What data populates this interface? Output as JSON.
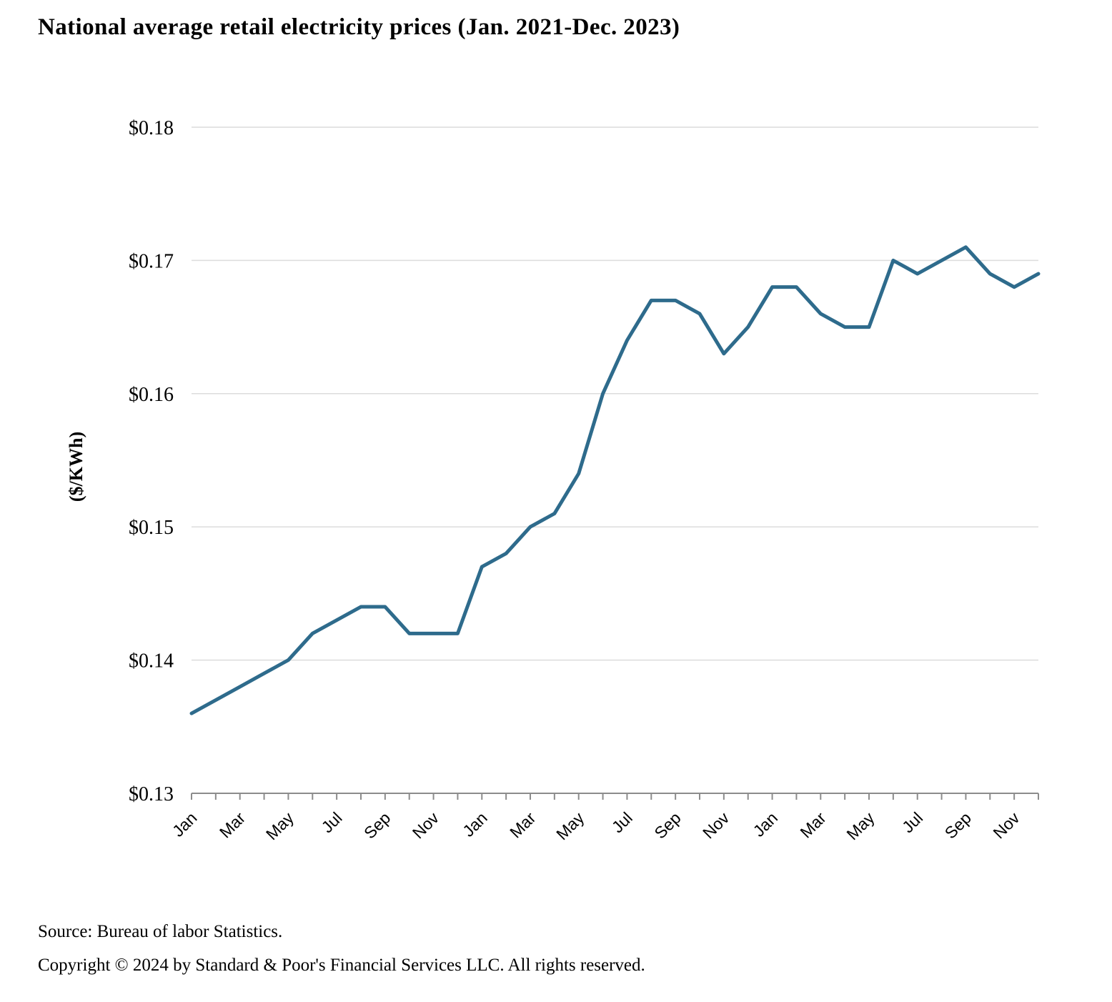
{
  "header": {
    "title": "National average retail electricity prices (Jan. 2021-Dec. 2023)"
  },
  "footer": {
    "source": "Source: Bureau of labor Statistics.",
    "copyright": "Copyright © 2024 by Standard & Poor's Financial Services LLC. All rights reserved."
  },
  "chart_data": {
    "type": "line",
    "title": "National average retail electricity prices (Jan. 2021-Dec. 2023)",
    "xlabel": "",
    "ylabel": "($/KWh)",
    "categories": [
      "Jan 2021",
      "Feb 2021",
      "Mar 2021",
      "Apr 2021",
      "May 2021",
      "Jun 2021",
      "Jul 2021",
      "Aug 2021",
      "Sep 2021",
      "Oct 2021",
      "Nov 2021",
      "Dec 2021",
      "Jan 2022",
      "Feb 2022",
      "Mar 2022",
      "Apr 2022",
      "May 2022",
      "Jun 2022",
      "Jul 2022",
      "Aug 2022",
      "Sep 2022",
      "Oct 2022",
      "Nov 2022",
      "Dec 2022",
      "Jan 2023",
      "Feb 2023",
      "Mar 2023",
      "Apr 2023",
      "May 2023",
      "Jun 2023",
      "Jul 2023",
      "Aug 2023",
      "Sep 2023",
      "Oct 2023",
      "Nov 2023",
      "Dec 2023"
    ],
    "values": [
      0.136,
      0.137,
      0.138,
      0.139,
      0.14,
      0.142,
      0.143,
      0.144,
      0.144,
      0.142,
      0.142,
      0.142,
      0.147,
      0.148,
      0.15,
      0.151,
      0.154,
      0.16,
      0.164,
      0.167,
      0.167,
      0.166,
      0.163,
      0.165,
      0.168,
      0.168,
      0.166,
      0.165,
      0.165,
      0.17,
      0.169,
      0.17,
      0.171,
      0.169,
      0.168,
      0.169
    ],
    "ylim": [
      0.13,
      0.18
    ],
    "y_ticks": [
      0.13,
      0.14,
      0.15,
      0.16,
      0.17,
      0.18
    ],
    "y_tick_labels": [
      "$0.13",
      "$0.14",
      "$0.15",
      "$0.16",
      "$0.17",
      "$0.18"
    ],
    "x_tick_label_every": 2,
    "x_tick_labels_shown": [
      "Jan",
      "Mar",
      "May",
      "Jul",
      "Sep",
      "Nov",
      "Jan",
      "Mar",
      "May",
      "Jul",
      "Sep",
      "Nov",
      "Jan",
      "Mar",
      "May",
      "Jul",
      "Sep",
      "Nov"
    ],
    "grid": "horizontal",
    "legend": "none",
    "line_color": "#2E6B8C",
    "grid_color": "#DCDCDC",
    "axis_color": "#8C8C8C",
    "text_color": "#000000"
  }
}
